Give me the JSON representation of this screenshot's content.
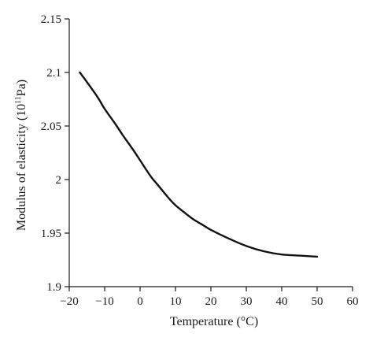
{
  "chart_data": {
    "type": "line",
    "xlabel": "Temperature (°C)",
    "ylabel_prefix": "Modulus of elasticity (10",
    "ylabel_exponent": "11",
    "ylabel_suffix": "Pa)",
    "xlim": [
      -20,
      60
    ],
    "ylim": [
      1.9,
      2.15
    ],
    "x_ticks": [
      -20,
      -10,
      0,
      10,
      20,
      30,
      40,
      50,
      60
    ],
    "x_tick_labels": [
      "−20",
      "−10",
      "0",
      "10",
      "20",
      "30",
      "40",
      "50",
      "60"
    ],
    "y_ticks": [
      1.9,
      1.95,
      2.0,
      2.05,
      2.1,
      2.15
    ],
    "y_tick_labels": [
      "1.9",
      "1.95",
      "2",
      "2.05",
      "2.1",
      "2.15"
    ],
    "grid": false,
    "series": [
      {
        "color": "#111111",
        "x": [
          -17,
          -15,
          -12,
          -10,
          -7,
          -5,
          -2,
          0,
          3,
          5,
          8,
          10,
          13,
          15,
          18,
          20,
          25,
          30,
          35,
          40,
          45,
          50
        ],
        "y": [
          2.1,
          2.091,
          2.077,
          2.066,
          2.052,
          2.042,
          2.028,
          2.018,
          2.003,
          1.995,
          1.983,
          1.976,
          1.968,
          1.963,
          1.957,
          1.953,
          1.945,
          1.938,
          1.933,
          1.93,
          1.929,
          1.928
        ]
      }
    ]
  }
}
